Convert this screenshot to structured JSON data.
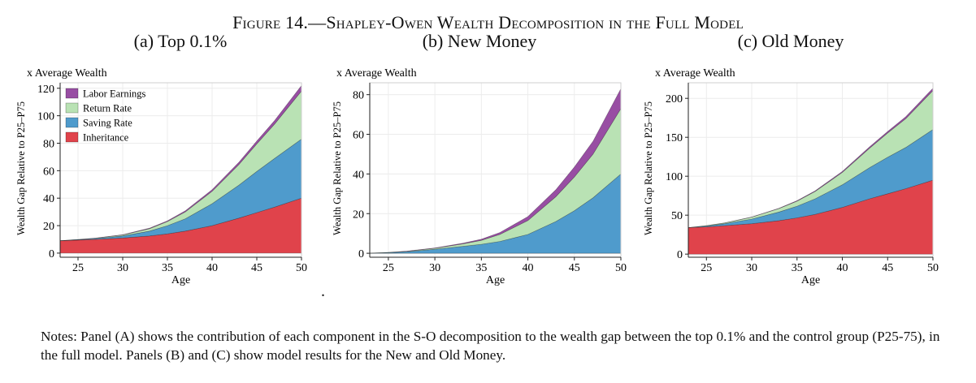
{
  "figure_title": "Figure 14.—Shapley-Owen Wealth Decomposition in the Full Model",
  "notes": "Notes: Panel (A) shows the contribution of each component in the S-O decomposition to the wealth gap between the top 0.1% and the control group (P25-75), in the full model. Panels (B) and (C) show model results for the New and Old Money.",
  "stray_mark": ".",
  "colors": {
    "labor": "#984ea3",
    "return": "#b9e2b4",
    "saving": "#4f9bcc",
    "inheritance": "#e0434b",
    "grid": "#ececec",
    "axis": "#222222"
  },
  "chart_data": [
    {
      "type": "area",
      "stacked": true,
      "panel_label": "(a) Top 0.1%",
      "unit_label": "x Average Wealth",
      "ylabel": "Wealth Gap Relative to P25–P75",
      "xlabel": "Age",
      "xlim": [
        23,
        50
      ],
      "ylim": [
        -3,
        124
      ],
      "xticks": [
        25,
        30,
        35,
        40,
        45,
        50
      ],
      "yticks": [
        0,
        20,
        40,
        60,
        80,
        100,
        120
      ],
      "grid": true,
      "legend": "top-left",
      "x": [
        23,
        25,
        27,
        30,
        33,
        35,
        37,
        40,
        43,
        45,
        47,
        50
      ],
      "series": [
        {
          "name": "Inheritance",
          "key": "inheritance",
          "values": [
            9,
            9.5,
            10,
            11,
            12.5,
            14,
            16,
            20,
            25.5,
            29.5,
            33.5,
            40
          ]
        },
        {
          "name": "Saving Rate",
          "key": "saving",
          "values": [
            0,
            0.3,
            0.6,
            1.5,
            3.5,
            6,
            9,
            16,
            24,
            30,
            35.5,
            43
          ]
        },
        {
          "name": "Return Rate",
          "key": "return",
          "values": [
            0,
            0.1,
            0.3,
            0.7,
            1.8,
            3,
            5,
            9,
            15,
            20,
            25,
            35
          ]
        },
        {
          "name": "Labor Earnings",
          "key": "labor",
          "values": [
            0,
            0,
            0.1,
            0.2,
            0.4,
            0.5,
            0.8,
            1.2,
            1.7,
            2.1,
            2.6,
            4
          ]
        }
      ]
    },
    {
      "type": "area",
      "stacked": true,
      "panel_label": "(b) New Money",
      "unit_label": "x Average Wealth",
      "ylabel": "Wealth Gap Relative to P25–P75",
      "xlabel": "Age",
      "xlim": [
        23,
        50
      ],
      "ylim": [
        -2,
        86
      ],
      "xticks": [
        25,
        30,
        35,
        40,
        45,
        50
      ],
      "yticks": [
        0,
        20,
        40,
        60,
        80
      ],
      "grid": true,
      "x": [
        23,
        25,
        27,
        30,
        33,
        35,
        37,
        40,
        43,
        45,
        47,
        50
      ],
      "series": [
        {
          "name": "Inheritance",
          "key": "inheritance",
          "values": [
            0,
            0,
            0,
            0,
            0,
            0,
            0,
            0,
            0,
            0,
            0,
            0
          ]
        },
        {
          "name": "Saving Rate",
          "key": "saving",
          "values": [
            0,
            0.3,
            0.8,
            2,
            3.5,
            4.5,
            6,
            9.5,
            16,
            21.5,
            28,
            40
          ]
        },
        {
          "name": "Return Rate",
          "key": "return",
          "values": [
            0,
            0.1,
            0.2,
            0.5,
            1.2,
            2,
            3.5,
            7,
            12.5,
            17,
            22,
            33
          ]
        },
        {
          "name": "Labor Earnings",
          "key": "labor",
          "values": [
            0,
            0,
            0.1,
            0.2,
            0.4,
            0.6,
            1,
            2,
            3.5,
            5,
            6.5,
            10
          ]
        }
      ]
    },
    {
      "type": "area",
      "stacked": true,
      "panel_label": "(c) Old Money",
      "unit_label": "x Average Wealth",
      "ylabel": "Wealth Gap Relative to P25–P75",
      "xlabel": "Age",
      "xlim": [
        23,
        50
      ],
      "ylim": [
        -4,
        220
      ],
      "xticks": [
        25,
        30,
        35,
        40,
        45,
        50
      ],
      "yticks": [
        0,
        50,
        100,
        150,
        200
      ],
      "grid": true,
      "x": [
        23,
        25,
        27,
        30,
        33,
        35,
        37,
        40,
        43,
        45,
        47,
        50
      ],
      "series": [
        {
          "name": "Inheritance",
          "key": "inheritance",
          "values": [
            34,
            35,
            36.5,
            39,
            43,
            46.5,
            51,
            60,
            71,
            77.5,
            84,
            95
          ]
        },
        {
          "name": "Saving Rate",
          "key": "saving",
          "values": [
            0,
            1,
            2.5,
            6,
            11,
            15,
            20,
            29,
            40,
            47,
            53,
            65
          ]
        },
        {
          "name": "Return Rate",
          "key": "return",
          "values": [
            0,
            0.5,
            1,
            2.5,
            4.5,
            6.5,
            9.5,
            16,
            25,
            31,
            37,
            50
          ]
        },
        {
          "name": "Labor Earnings",
          "key": "labor",
          "values": [
            0,
            0,
            0.1,
            0.2,
            0.4,
            0.6,
            0.8,
            1.2,
            1.7,
            2,
            2.4,
            3
          ]
        }
      ]
    }
  ]
}
